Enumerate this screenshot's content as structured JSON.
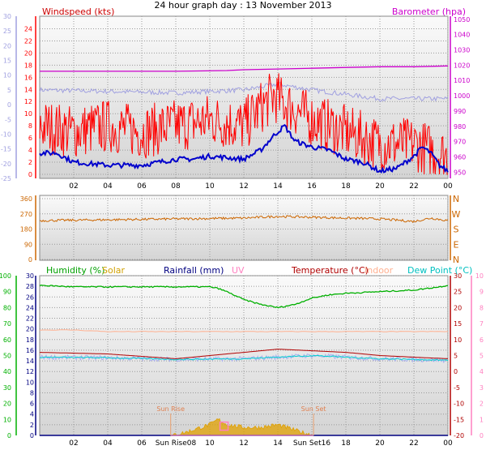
{
  "title": "24 hour graph day : 13 November 2013",
  "colors": {
    "wind": "#ff0000",
    "wind_avg": "#0000cc",
    "baro": "#cc00cc",
    "temp_left_axis": "#a0a0e0",
    "wind_dir": "#cc6600",
    "humidity": "#00b000",
    "solar": "#e0a000",
    "rainfall": "#000080",
    "uv": "#ff80c0",
    "temperature": "#b00000",
    "indoor": "#ffb090",
    "dewpoint": "#00d0d0"
  },
  "chart_data": [
    {
      "type": "line",
      "panel": "wind-baro",
      "legend": {
        "left": "Windspeed (kts)",
        "right": "Barometer (hpa)"
      },
      "x_ticks": [
        "02",
        "04",
        "06",
        "08",
        "10",
        "12",
        "14",
        "16",
        "18",
        "20",
        "22",
        "00"
      ],
      "axis_outer_left": {
        "ticks": [
          30,
          25,
          20,
          15,
          10,
          5,
          0,
          -5,
          -10,
          -15,
          -20,
          -25
        ],
        "range": [
          -25,
          30
        ]
      },
      "axis_left": {
        "ticks": [
          24,
          22,
          20,
          18,
          16,
          14,
          12,
          10,
          8,
          6,
          4,
          2,
          0
        ],
        "range": [
          0,
          25
        ]
      },
      "axis_right": {
        "ticks": [
          1050,
          1040,
          1030,
          1020,
          1010,
          1000,
          990,
          980,
          970,
          960,
          950
        ],
        "range": [
          946,
          1052
        ]
      },
      "series": [
        {
          "name": "Barometer",
          "axis": "right",
          "x": [
            0,
            4,
            8,
            11,
            12,
            14,
            16,
            18,
            20,
            22,
            24
          ],
          "values": [
            1016,
            1016,
            1016,
            1016.5,
            1017,
            1017.5,
            1018,
            1018.5,
            1019,
            1019,
            1019.5
          ]
        },
        {
          "name": "Windspeed",
          "axis": "left",
          "x": [
            0,
            2,
            4,
            6,
            8,
            10,
            12,
            13,
            13.8,
            14.2,
            14.8,
            16,
            18,
            20,
            22,
            24
          ],
          "values": [
            8,
            7,
            8,
            7,
            8,
            9,
            8,
            11,
            13,
            12,
            11,
            9,
            7,
            5,
            5,
            3
          ]
        },
        {
          "name": "Average",
          "axis": "left",
          "x": [
            0,
            1,
            2,
            4,
            6,
            8,
            9,
            10,
            12,
            13,
            13.8,
            14.4,
            15,
            16,
            17,
            18,
            19,
            20,
            21,
            22,
            22.5,
            23,
            23.5,
            24
          ],
          "values": [
            3.5,
            3.5,
            2,
            1.5,
            1.5,
            2.5,
            2.5,
            3,
            2.5,
            4,
            6.5,
            8,
            5.5,
            4.5,
            4,
            2.5,
            2,
            0.5,
            1,
            3,
            4.5,
            3.5,
            1.5,
            0.5
          ]
        },
        {
          "name": "Outer",
          "axis": "outer_left",
          "x": [
            0,
            4,
            8,
            12,
            14,
            16,
            20,
            24
          ],
          "values": [
            5,
            4.5,
            4,
            5,
            7,
            5,
            2,
            2
          ]
        }
      ]
    },
    {
      "type": "line",
      "panel": "wind-direction",
      "x_ticks": [],
      "axis_left": {
        "ticks": [
          360,
          270,
          180,
          90,
          0
        ],
        "range": [
          0,
          360
        ]
      },
      "axis_right": {
        "ticks": [
          "N",
          "W",
          "S",
          "E",
          "N"
        ]
      },
      "series": [
        {
          "name": "Wind direction",
          "x": [
            0,
            4,
            8,
            12,
            14,
            16,
            20,
            22,
            23,
            24
          ],
          "values": [
            230,
            235,
            240,
            245,
            255,
            250,
            240,
            225,
            245,
            230
          ]
        }
      ]
    },
    {
      "type": "line",
      "panel": "temp-hum",
      "legend": [
        "Humidity (%)",
        "Solar",
        "Rainfall (mm)",
        "UV",
        "Temperature (°C)",
        "Indoor",
        "Dew Point (°C)"
      ],
      "x_ticks": [
        "02",
        "04",
        "06",
        "Sun Rise08",
        "10",
        "12",
        "14",
        "Sun Set16",
        "18",
        "20",
        "22",
        "00"
      ],
      "axis_humidity": {
        "ticks": [
          100,
          90,
          80,
          70,
          60,
          50,
          40,
          30,
          20,
          10,
          0
        ],
        "range": [
          0,
          100
        ]
      },
      "axis_rain": {
        "ticks": [
          30,
          28,
          26,
          24,
          22,
          20,
          18,
          16,
          14,
          12,
          10,
          8,
          6,
          4,
          2,
          0
        ],
        "range": [
          0,
          30
        ]
      },
      "axis_temp": {
        "ticks": [
          30,
          25,
          20,
          15,
          10,
          5,
          0,
          -5,
          -10,
          -15,
          -20
        ],
        "range": [
          -20,
          30
        ]
      },
      "axis_uv": {
        "ticks": [
          10,
          9,
          8,
          7,
          6,
          5,
          4,
          3,
          2,
          1,
          0
        ],
        "range": [
          0,
          10
        ]
      },
      "annotations": [
        {
          "text": "Sun Rise",
          "x": 7.7
        },
        {
          "text": "Sun Set",
          "x": 16.1
        }
      ],
      "series": [
        {
          "name": "Humidity",
          "axis": "humidity",
          "x": [
            0,
            2,
            4,
            6,
            8,
            10,
            10.5,
            11,
            12,
            13,
            14,
            15,
            16,
            17,
            18,
            20,
            22,
            23.5,
            24
          ],
          "values": [
            94,
            93,
            93,
            93,
            93,
            93,
            92,
            90,
            85,
            82,
            80,
            82,
            86,
            88,
            89,
            90,
            91,
            93,
            94
          ]
        },
        {
          "name": "Indoor",
          "axis": "temp",
          "x": [
            0,
            2,
            4,
            8,
            12,
            16,
            20,
            24
          ],
          "values": [
            13,
            13,
            12.5,
            12.5,
            12.5,
            12.5,
            12.5,
            12.5
          ]
        },
        {
          "name": "Temperature",
          "axis": "temp",
          "x": [
            0,
            4,
            8,
            12,
            14,
            16,
            18,
            20,
            22,
            24
          ],
          "values": [
            6,
            5.5,
            4,
            6,
            7,
            6.5,
            6,
            5,
            4.5,
            4
          ]
        },
        {
          "name": "Dew Point",
          "axis": "temp",
          "x": [
            0,
            4,
            8,
            12,
            14,
            16,
            18,
            20,
            22,
            24
          ],
          "values": [
            4.5,
            4.3,
            3.8,
            4,
            4.5,
            5,
            4.5,
            4,
            3.8,
            3.5
          ]
        },
        {
          "name": "Solar",
          "axis": "rain",
          "x": [
            7.7,
            8.5,
            9,
            10,
            10.5,
            11,
            12,
            13,
            14,
            15,
            15.5,
            16.1
          ],
          "values": [
            0,
            0.5,
            1,
            2,
            3,
            2,
            1.5,
            1.5,
            2,
            1,
            0.5,
            0
          ]
        },
        {
          "name": "Rainfall",
          "axis": "rain",
          "x": [
            0,
            24
          ],
          "values": [
            0,
            0
          ]
        },
        {
          "name": "UV",
          "axis": "uv",
          "x": [
            7.7,
            16.1
          ],
          "values": [
            0,
            0
          ]
        }
      ]
    }
  ]
}
